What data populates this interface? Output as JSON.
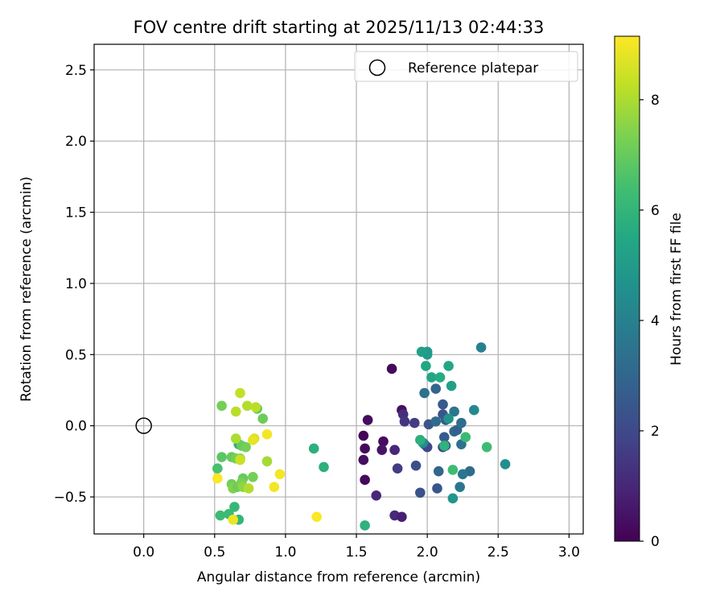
{
  "chart_data": {
    "type": "scatter",
    "title": "FOV centre drift starting at 2025/11/13 02:44:33",
    "xlabel": "Angular distance from reference (arcmin)",
    "ylabel": "Rotation from reference (arcmin)",
    "xlim": [
      -0.35,
      3.1
    ],
    "ylim": [
      -0.76,
      2.68
    ],
    "xticks": [
      0.0,
      0.5,
      1.0,
      1.5,
      2.0,
      2.5,
      3.0
    ],
    "xtick_labels": [
      "0.0",
      "0.5",
      "1.0",
      "1.5",
      "2.0",
      "2.5",
      "3.0"
    ],
    "yticks": [
      -0.5,
      0.0,
      0.5,
      1.0,
      1.5,
      2.0,
      2.5
    ],
    "ytick_labels": [
      "−0.5",
      "0.0",
      "0.5",
      "1.0",
      "1.5",
      "2.0",
      "2.5"
    ],
    "grid": true,
    "legend": {
      "position": "top-right",
      "entries": [
        {
          "label": "Reference platepar",
          "marker": "open-circle",
          "color": "#000000"
        }
      ]
    },
    "reference_point": {
      "x": 0.0,
      "y": 0.0
    },
    "colorbar": {
      "label": "Hours from first FF file",
      "colormap": "viridis",
      "range": [
        0,
        9.15
      ],
      "ticks": [
        0,
        2,
        4,
        6,
        8
      ],
      "tick_labels": [
        "0",
        "2",
        "4",
        "6",
        "8"
      ]
    },
    "points": [
      {
        "x": 1.75,
        "y": 0.4,
        "c": 0.2
      },
      {
        "x": 1.82,
        "y": 0.11,
        "c": 0.4
      },
      {
        "x": 1.58,
        "y": 0.04,
        "c": 0.3
      },
      {
        "x": 1.55,
        "y": -0.07,
        "c": 0.1
      },
      {
        "x": 1.56,
        "y": -0.16,
        "c": 0.2
      },
      {
        "x": 1.55,
        "y": -0.24,
        "c": 0.3
      },
      {
        "x": 1.56,
        "y": -0.38,
        "c": 0.2
      },
      {
        "x": 1.69,
        "y": -0.11,
        "c": 0.3
      },
      {
        "x": 1.68,
        "y": -0.17,
        "c": 0.5
      },
      {
        "x": 1.77,
        "y": -0.17,
        "c": 1.0
      },
      {
        "x": 1.79,
        "y": -0.3,
        "c": 1.6
      },
      {
        "x": 1.64,
        "y": -0.49,
        "c": 1.0
      },
      {
        "x": 1.77,
        "y": -0.63,
        "c": 1.1
      },
      {
        "x": 1.82,
        "y": -0.64,
        "c": 0.8
      },
      {
        "x": 1.83,
        "y": 0.08,
        "c": 1.2
      },
      {
        "x": 1.84,
        "y": 0.03,
        "c": 1.4
      },
      {
        "x": 1.91,
        "y": 0.02,
        "c": 1.6
      },
      {
        "x": 1.98,
        "y": -0.13,
        "c": 1.8
      },
      {
        "x": 2.0,
        "y": -0.15,
        "c": 2.0
      },
      {
        "x": 1.92,
        "y": -0.28,
        "c": 2.2
      },
      {
        "x": 1.95,
        "y": -0.47,
        "c": 2.3
      },
      {
        "x": 2.01,
        "y": 0.01,
        "c": 2.4
      },
      {
        "x": 2.07,
        "y": -0.44,
        "c": 2.4
      },
      {
        "x": 2.08,
        "y": -0.32,
        "c": 3.0
      },
      {
        "x": 2.11,
        "y": -0.15,
        "c": 2.0
      },
      {
        "x": 2.12,
        "y": -0.08,
        "c": 2.6
      },
      {
        "x": 2.13,
        "y": -0.14,
        "c": 2.8
      },
      {
        "x": 2.11,
        "y": 0.08,
        "c": 2.4
      },
      {
        "x": 2.13,
        "y": 0.04,
        "c": 2.6
      },
      {
        "x": 2.11,
        "y": 0.15,
        "c": 2.6
      },
      {
        "x": 2.06,
        "y": 0.03,
        "c": 3.2
      },
      {
        "x": 2.06,
        "y": 0.26,
        "c": 3.0
      },
      {
        "x": 1.98,
        "y": 0.23,
        "c": 3.4
      },
      {
        "x": 2.19,
        "y": 0.1,
        "c": 3.6
      },
      {
        "x": 2.19,
        "y": -0.04,
        "c": 3.0
      },
      {
        "x": 2.21,
        "y": -0.03,
        "c": 2.8
      },
      {
        "x": 2.24,
        "y": 0.02,
        "c": 3.3
      },
      {
        "x": 2.24,
        "y": -0.13,
        "c": 3.4
      },
      {
        "x": 2.3,
        "y": -0.32,
        "c": 3.2
      },
      {
        "x": 2.25,
        "y": -0.34,
        "c": 3.6
      },
      {
        "x": 2.23,
        "y": -0.43,
        "c": 3.6
      },
      {
        "x": 2.38,
        "y": 0.55,
        "c": 4.0
      },
      {
        "x": 2.33,
        "y": 0.11,
        "c": 4.3
      },
      {
        "x": 2.55,
        "y": -0.27,
        "c": 4.5
      },
      {
        "x": 1.97,
        "y": -0.12,
        "c": 4.5
      },
      {
        "x": 2.15,
        "y": 0.05,
        "c": 4.7
      },
      {
        "x": 2.18,
        "y": -0.51,
        "c": 4.8
      },
      {
        "x": 2.0,
        "y": 0.52,
        "c": 5.0
      },
      {
        "x": 2.0,
        "y": 0.5,
        "c": 5.0
      },
      {
        "x": 1.96,
        "y": 0.52,
        "c": 5.2
      },
      {
        "x": 1.99,
        "y": 0.42,
        "c": 5.4
      },
      {
        "x": 2.03,
        "y": 0.34,
        "c": 5.4
      },
      {
        "x": 2.09,
        "y": 0.34,
        "c": 5.6
      },
      {
        "x": 2.15,
        "y": 0.42,
        "c": 5.4
      },
      {
        "x": 2.17,
        "y": 0.28,
        "c": 5.2
      },
      {
        "x": 1.95,
        "y": -0.1,
        "c": 5.8
      },
      {
        "x": 2.12,
        "y": -0.14,
        "c": 5.9
      },
      {
        "x": 2.27,
        "y": -0.08,
        "c": 6.2
      },
      {
        "x": 2.18,
        "y": -0.31,
        "c": 6.3
      },
      {
        "x": 2.42,
        "y": -0.15,
        "c": 6.3
      },
      {
        "x": 1.2,
        "y": -0.16,
        "c": 5.8
      },
      {
        "x": 1.27,
        "y": -0.29,
        "c": 5.8
      },
      {
        "x": 1.56,
        "y": -0.7,
        "c": 5.9
      },
      {
        "x": 0.67,
        "y": -0.13,
        "c": 5.8
      },
      {
        "x": 0.67,
        "y": -0.66,
        "c": 6.0
      },
      {
        "x": 0.64,
        "y": -0.57,
        "c": 6.1
      },
      {
        "x": 0.6,
        "y": -0.62,
        "c": 6.2
      },
      {
        "x": 0.54,
        "y": -0.63,
        "c": 6.3
      },
      {
        "x": 0.52,
        "y": -0.3,
        "c": 6.5
      },
      {
        "x": 0.55,
        "y": -0.22,
        "c": 6.8
      },
      {
        "x": 0.62,
        "y": -0.22,
        "c": 7.0
      },
      {
        "x": 0.65,
        "y": -0.23,
        "c": 7.2
      },
      {
        "x": 0.69,
        "y": -0.14,
        "c": 7.0
      },
      {
        "x": 0.72,
        "y": -0.15,
        "c": 7.2
      },
      {
        "x": 0.68,
        "y": -0.23,
        "c": 7.6
      },
      {
        "x": 0.62,
        "y": -0.41,
        "c": 7.2
      },
      {
        "x": 0.63,
        "y": -0.44,
        "c": 7.4
      },
      {
        "x": 0.66,
        "y": -0.43,
        "c": 7.1
      },
      {
        "x": 0.7,
        "y": -0.37,
        "c": 7.0
      },
      {
        "x": 0.69,
        "y": -0.4,
        "c": 7.3
      },
      {
        "x": 0.7,
        "y": -0.43,
        "c": 7.6
      },
      {
        "x": 0.74,
        "y": -0.44,
        "c": 8.1
      },
      {
        "x": 0.77,
        "y": -0.36,
        "c": 7.2
      },
      {
        "x": 0.87,
        "y": -0.25,
        "c": 7.9
      },
      {
        "x": 0.8,
        "y": 0.12,
        "c": 6.8
      },
      {
        "x": 0.84,
        "y": 0.05,
        "c": 7.1
      },
      {
        "x": 0.55,
        "y": 0.14,
        "c": 7.2
      },
      {
        "x": 0.65,
        "y": -0.09,
        "c": 8.0
      },
      {
        "x": 0.73,
        "y": 0.14,
        "c": 8.1
      },
      {
        "x": 0.79,
        "y": 0.13,
        "c": 8.2
      },
      {
        "x": 0.65,
        "y": 0.1,
        "c": 8.2
      },
      {
        "x": 0.68,
        "y": 0.23,
        "c": 8.3
      },
      {
        "x": 0.68,
        "y": -0.24,
        "c": 8.4
      },
      {
        "x": 0.78,
        "y": -0.09,
        "c": 8.6
      },
      {
        "x": 0.77,
        "y": -0.1,
        "c": 8.8
      },
      {
        "x": 0.87,
        "y": -0.06,
        "c": 9.0
      },
      {
        "x": 0.92,
        "y": -0.43,
        "c": 9.0
      },
      {
        "x": 0.96,
        "y": -0.34,
        "c": 9.0
      },
      {
        "x": 0.52,
        "y": -0.37,
        "c": 9.1
      },
      {
        "x": 0.63,
        "y": -0.66,
        "c": 8.9
      },
      {
        "x": 1.22,
        "y": -0.64,
        "c": 9.1
      }
    ]
  }
}
